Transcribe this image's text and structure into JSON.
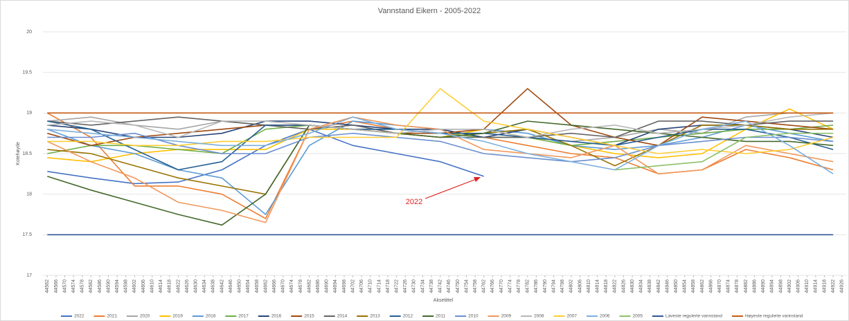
{
  "chart_data": {
    "type": "line",
    "title": "Vannstand Eikern - 2005-2022",
    "x_label": "Aksetittel",
    "y_label": "Kotehøyde",
    "annotations": [
      {
        "text": "2022"
      }
    ],
    "xlim": [
      44560,
      44928
    ],
    "ylim": [
      17,
      20
    ],
    "yticks": [
      17,
      17.5,
      18,
      18.5,
      19,
      19.5,
      20
    ],
    "grid": true,
    "legend": "bottom",
    "xticks": [
      44562,
      44566,
      44570,
      44574,
      44578,
      44582,
      44586,
      44590,
      44594,
      44598,
      44602,
      44606,
      44610,
      44614,
      44618,
      44622,
      44626,
      44630,
      44634,
      44638,
      44642,
      44646,
      44650,
      44654,
      44658,
      44662,
      44666,
      44670,
      44674,
      44678,
      44682,
      44686,
      44690,
      44694,
      44698,
      44702,
      44706,
      44710,
      44714,
      44718,
      44722,
      44726,
      44730,
      44734,
      44738,
      44742,
      44746,
      44750,
      44754,
      44758,
      44762,
      44766,
      44770,
      44774,
      44778,
      44782,
      44786,
      44790,
      44794,
      44798,
      44802,
      44806,
      44810,
      44814,
      44818,
      44822,
      44826,
      44830,
      44834,
      44838,
      44842,
      44846,
      44850,
      44854,
      44858,
      44862,
      44866,
      44870,
      44874,
      44878,
      44882,
      44886,
      44890,
      44894,
      44898,
      44902,
      44906,
      44910,
      44914,
      44918,
      44922,
      44926
    ],
    "x": [
      44562,
      44582,
      44602,
      44622,
      44642,
      44662,
      44682,
      44702,
      44722,
      44742,
      44762,
      44782,
      44802,
      44822,
      44842,
      44862,
      44882,
      44902,
      44922
    ],
    "series": [
      {
        "name": "2022",
        "color": "#4472c4",
        "values": [
          18.28,
          18.2,
          18.13,
          18.15,
          18.3,
          18.6,
          18.8,
          18.6,
          18.5,
          18.4,
          18.22,
          null,
          null,
          null,
          null,
          null,
          null,
          null,
          null
        ]
      },
      {
        "name": "2021",
        "color": "#ed7d31",
        "values": [
          19.0,
          18.7,
          18.1,
          18.1,
          18.0,
          17.7,
          18.8,
          18.9,
          18.8,
          18.75,
          18.7,
          18.6,
          18.5,
          18.45,
          18.25,
          18.3,
          18.55,
          18.45,
          18.3
        ]
      },
      {
        "name": "2020",
        "color": "#a5a5a5",
        "values": [
          18.9,
          18.95,
          18.85,
          18.8,
          18.9,
          18.85,
          18.85,
          18.8,
          18.75,
          18.75,
          18.7,
          18.7,
          18.65,
          18.7,
          18.8,
          18.75,
          18.95,
          19.0,
          19.0
        ]
      },
      {
        "name": "2019",
        "color": "#ffc000",
        "values": [
          18.45,
          18.4,
          18.5,
          18.55,
          18.55,
          18.55,
          18.8,
          18.8,
          18.75,
          18.7,
          18.8,
          18.7,
          18.6,
          18.5,
          18.45,
          18.5,
          18.8,
          19.05,
          18.8
        ]
      },
      {
        "name": "2018",
        "color": "#5b9bd5",
        "values": [
          18.8,
          18.6,
          18.5,
          18.3,
          18.2,
          17.75,
          18.6,
          18.9,
          18.85,
          18.8,
          18.8,
          18.75,
          18.6,
          18.55,
          18.6,
          18.7,
          18.85,
          18.75,
          18.65
        ]
      },
      {
        "name": "2017",
        "color": "#70ad47",
        "values": [
          18.5,
          18.6,
          18.6,
          18.55,
          18.5,
          18.8,
          18.85,
          18.8,
          18.8,
          18.75,
          18.7,
          18.7,
          18.6,
          18.65,
          18.7,
          18.75,
          18.8,
          18.8,
          18.85
        ]
      },
      {
        "name": "2016",
        "color": "#264478",
        "values": [
          18.85,
          18.8,
          18.7,
          18.7,
          18.75,
          18.9,
          18.9,
          18.85,
          18.8,
          18.8,
          18.7,
          18.8,
          18.7,
          18.6,
          18.8,
          18.85,
          18.85,
          18.8,
          18.7
        ]
      },
      {
        "name": "2015",
        "color": "#9e480e",
        "values": [
          18.75,
          18.6,
          18.7,
          18.75,
          18.8,
          18.85,
          18.85,
          18.8,
          18.75,
          18.75,
          18.8,
          19.3,
          18.85,
          18.7,
          18.6,
          18.95,
          18.9,
          18.85,
          18.8
        ]
      },
      {
        "name": "2014",
        "color": "#636363",
        "values": [
          18.9,
          18.85,
          18.9,
          18.95,
          18.9,
          18.85,
          18.8,
          18.85,
          18.75,
          18.7,
          18.7,
          18.7,
          18.75,
          18.7,
          18.9,
          18.9,
          18.85,
          18.9,
          18.9
        ]
      },
      {
        "name": "2013",
        "color": "#997300",
        "values": [
          18.55,
          18.5,
          18.35,
          18.2,
          18.1,
          18.0,
          18.85,
          18.8,
          18.75,
          18.7,
          18.75,
          18.8,
          18.6,
          18.35,
          18.6,
          18.85,
          18.85,
          18.8,
          18.8
        ]
      },
      {
        "name": "2012",
        "color": "#255e91",
        "values": [
          18.9,
          18.8,
          18.55,
          18.3,
          18.4,
          18.85,
          18.85,
          18.8,
          18.8,
          18.75,
          18.75,
          18.7,
          18.65,
          18.6,
          18.7,
          18.8,
          18.8,
          18.7,
          18.55
        ]
      },
      {
        "name": "2011",
        "color": "#43682b",
        "values": [
          18.22,
          18.05,
          17.9,
          17.75,
          17.62,
          18.0,
          18.85,
          18.8,
          18.75,
          18.7,
          18.75,
          18.9,
          18.85,
          18.8,
          18.75,
          18.7,
          18.65,
          18.65,
          18.6
        ]
      },
      {
        "name": "2010",
        "color": "#698ed0",
        "values": [
          18.7,
          18.7,
          18.75,
          18.6,
          18.5,
          18.5,
          18.7,
          18.75,
          18.7,
          18.65,
          18.5,
          18.45,
          18.4,
          18.45,
          18.6,
          18.65,
          18.7,
          18.7,
          18.65
        ]
      },
      {
        "name": "2009",
        "color": "#f1975a",
        "values": [
          18.65,
          18.4,
          18.2,
          17.9,
          17.8,
          17.65,
          18.8,
          18.95,
          18.85,
          18.8,
          18.55,
          18.5,
          18.45,
          18.6,
          18.25,
          18.3,
          18.6,
          18.5,
          18.4
        ]
      },
      {
        "name": "2008",
        "color": "#b7b7b7",
        "values": [
          18.85,
          18.9,
          18.85,
          18.7,
          18.9,
          18.9,
          18.85,
          18.8,
          18.75,
          18.8,
          18.8,
          18.7,
          18.8,
          18.85,
          18.75,
          18.8,
          18.85,
          18.95,
          19.0
        ]
      },
      {
        "name": "2007",
        "color": "#ffcd33",
        "values": [
          18.65,
          18.65,
          18.6,
          18.6,
          18.65,
          18.65,
          18.7,
          18.7,
          18.7,
          19.3,
          18.9,
          18.8,
          18.7,
          18.6,
          18.5,
          18.55,
          18.5,
          18.55,
          18.7
        ]
      },
      {
        "name": "2006",
        "color": "#7cafdd",
        "values": [
          18.8,
          18.75,
          18.7,
          18.65,
          18.6,
          18.6,
          18.75,
          18.95,
          18.8,
          18.75,
          18.65,
          18.5,
          18.4,
          18.3,
          18.6,
          18.8,
          18.9,
          18.6,
          18.25
        ]
      },
      {
        "name": "2005",
        "color": "#8cc168",
        "values": [
          null,
          null,
          null,
          null,
          null,
          null,
          null,
          null,
          null,
          null,
          null,
          null,
          null,
          18.3,
          18.35,
          18.4,
          18.7,
          18.75,
          18.75
        ]
      },
      {
        "name": "Laveste regulerte vannstand",
        "color": "#2f5597",
        "values": [
          17.5,
          17.5,
          17.5,
          17.5,
          17.5,
          17.5,
          17.5,
          17.5,
          17.5,
          17.5,
          17.5,
          17.5,
          17.5,
          17.5,
          17.5,
          17.5,
          17.5,
          17.5,
          17.5
        ]
      },
      {
        "name": "Høyeste regulerte vannstand",
        "color": "#c55a11",
        "values": [
          19,
          19,
          19,
          19,
          19,
          19,
          19,
          19,
          19,
          19,
          19,
          19,
          19,
          19,
          19,
          19,
          19,
          19,
          19
        ]
      }
    ]
  }
}
